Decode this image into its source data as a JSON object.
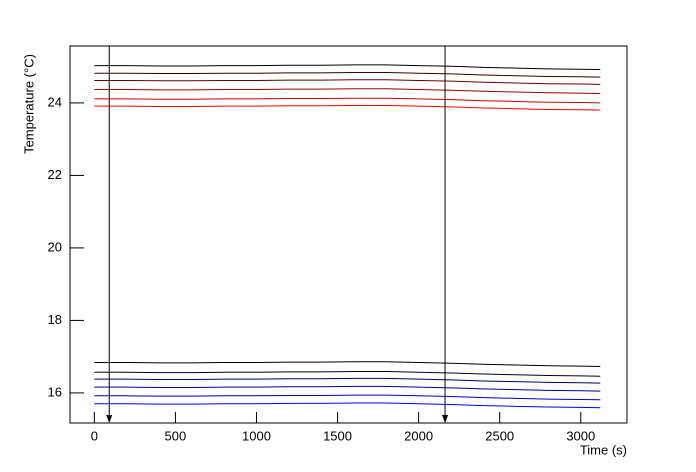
{
  "chart_data": {
    "type": "line",
    "x_label": "Time (s)",
    "y_label": "Temperature (°C)",
    "x": [
      0,
      200,
      400,
      600,
      800,
      1000,
      1200,
      1400,
      1600,
      1800,
      2000,
      2200,
      2400,
      2600,
      2800,
      3000,
      3120
    ],
    "series": [
      {
        "color": "#000000",
        "values": [
          25.03,
          25.03,
          25.02,
          25.02,
          25.03,
          25.03,
          25.04,
          25.04,
          25.05,
          25.05,
          25.03,
          25.01,
          24.98,
          24.96,
          24.94,
          24.93,
          24.92
        ]
      },
      {
        "color": "#330000",
        "values": [
          24.82,
          24.82,
          24.81,
          24.81,
          24.82,
          24.82,
          24.83,
          24.83,
          24.84,
          24.84,
          24.82,
          24.8,
          24.77,
          24.75,
          24.73,
          24.72,
          24.71
        ]
      },
      {
        "color": "#660000",
        "values": [
          24.62,
          24.62,
          24.61,
          24.61,
          24.62,
          24.62,
          24.63,
          24.63,
          24.64,
          24.64,
          24.62,
          24.6,
          24.57,
          24.55,
          24.53,
          24.52,
          24.51
        ]
      },
      {
        "color": "#990000",
        "values": [
          24.37,
          24.37,
          24.36,
          24.36,
          24.37,
          24.37,
          24.38,
          24.38,
          24.39,
          24.39,
          24.37,
          24.35,
          24.32,
          24.3,
          24.28,
          24.27,
          24.26
        ]
      },
      {
        "color": "#cc0000",
        "values": [
          24.11,
          24.11,
          24.1,
          24.1,
          24.11,
          24.11,
          24.12,
          24.12,
          24.13,
          24.13,
          24.11,
          24.09,
          24.06,
          24.04,
          24.02,
          24.01,
          24.0
        ]
      },
      {
        "color": "#ff0000",
        "values": [
          23.91,
          23.91,
          23.9,
          23.9,
          23.91,
          23.91,
          23.92,
          23.92,
          23.93,
          23.93,
          23.91,
          23.89,
          23.86,
          23.84,
          23.82,
          23.81,
          23.8
        ]
      },
      {
        "color": "#000000",
        "values": [
          16.84,
          16.84,
          16.83,
          16.83,
          16.84,
          16.84,
          16.85,
          16.85,
          16.86,
          16.86,
          16.84,
          16.82,
          16.79,
          16.77,
          16.75,
          16.74,
          16.73
        ]
      },
      {
        "color": "#000033",
        "values": [
          16.57,
          16.57,
          16.56,
          16.56,
          16.57,
          16.57,
          16.58,
          16.58,
          16.59,
          16.59,
          16.57,
          16.55,
          16.52,
          16.5,
          16.48,
          16.47,
          16.46
        ]
      },
      {
        "color": "#000066",
        "values": [
          16.38,
          16.38,
          16.37,
          16.37,
          16.38,
          16.38,
          16.39,
          16.39,
          16.4,
          16.4,
          16.38,
          16.36,
          16.33,
          16.31,
          16.29,
          16.28,
          16.27
        ]
      },
      {
        "color": "#000099",
        "values": [
          16.16,
          16.16,
          16.15,
          16.15,
          16.16,
          16.16,
          16.17,
          16.17,
          16.18,
          16.18,
          16.16,
          16.14,
          16.11,
          16.09,
          16.07,
          16.06,
          16.05
        ]
      },
      {
        "color": "#0000cc",
        "values": [
          15.92,
          15.92,
          15.91,
          15.91,
          15.92,
          15.92,
          15.93,
          15.93,
          15.94,
          15.94,
          15.92,
          15.9,
          15.87,
          15.85,
          15.83,
          15.82,
          15.81
        ]
      },
      {
        "color": "#0000ff",
        "values": [
          15.7,
          15.7,
          15.69,
          15.69,
          15.7,
          15.7,
          15.71,
          15.71,
          15.72,
          15.72,
          15.7,
          15.68,
          15.65,
          15.63,
          15.61,
          15.6,
          15.59
        ]
      }
    ],
    "markers": [
      92,
      2163
    ],
    "marker_color": "#000000",
    "xlim": [
      -150,
      3285
    ],
    "ylim": [
      15.17,
      25.57
    ],
    "xticks": [
      0,
      500,
      1000,
      1500,
      2000,
      2500,
      3000
    ],
    "yticks": [
      16,
      18,
      20,
      22,
      24
    ],
    "grid": false
  }
}
